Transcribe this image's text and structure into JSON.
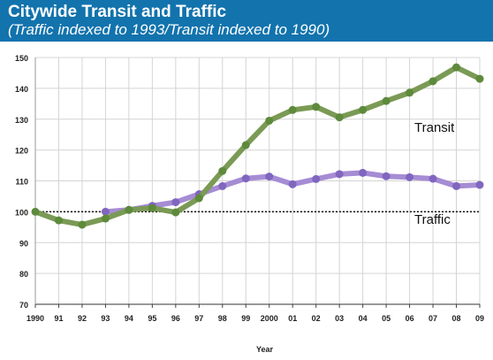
{
  "chart_data": {
    "type": "line",
    "title": "Citywide Transit and Traffic",
    "subtitle": "(Traffic indexed to 1993/Transit indexed to 1990)",
    "xlabel": "Year",
    "ylabel": "",
    "ylim": [
      70,
      150
    ],
    "yticks": [
      "70",
      "80",
      "90",
      "100",
      "110",
      "120",
      "130",
      "140",
      "150"
    ],
    "categories": [
      "1990",
      "91",
      "92",
      "93",
      "94",
      "95",
      "96",
      "97",
      "98",
      "99",
      "2000",
      "01",
      "02",
      "03",
      "04",
      "05",
      "06",
      "07",
      "08",
      "09"
    ],
    "reference_line": 100,
    "grid": true,
    "legend": "inline labels",
    "series": [
      {
        "name": "Transit",
        "color": "#7a9a55",
        "marker_color": "#5e8a3b",
        "values": [
          100,
          97.2,
          95.8,
          97.8,
          100.6,
          101.2,
          99.8,
          104.4,
          113.2,
          121.6,
          129.5,
          133,
          134,
          130.6,
          133,
          135.9,
          138.6,
          142.3,
          146.8,
          143.1
        ]
      },
      {
        "name": "Traffic",
        "color": "#a68cd4",
        "marker_color": "#8066bf",
        "values": [
          null,
          null,
          null,
          100,
          100.6,
          101.9,
          103.1,
          105.7,
          108.3,
          110.8,
          111.4,
          108.9,
          110.6,
          112.2,
          112.6,
          111.5,
          111.2,
          110.7,
          108.3,
          108.7
        ]
      }
    ]
  }
}
